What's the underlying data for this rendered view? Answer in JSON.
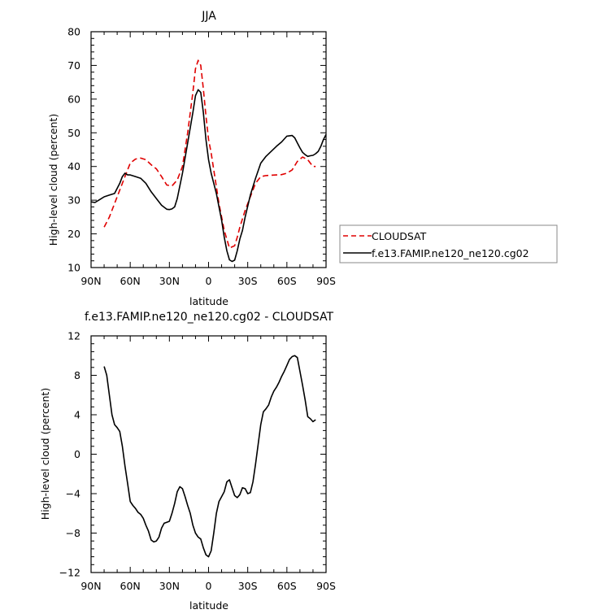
{
  "chart_data": [
    {
      "type": "line",
      "title": "JJA",
      "xlabel": "latitude",
      "ylabel": "High-level cloud (percent)",
      "xlim": [
        90,
        -90
      ],
      "ylim": [
        10,
        80
      ],
      "x_ticks": [
        90,
        60,
        30,
        0,
        -30,
        -60,
        -90
      ],
      "x_tick_labels": [
        "90N",
        "60N",
        "30N",
        "0",
        "30S",
        "60S",
        "90S"
      ],
      "y_ticks": [
        10,
        20,
        30,
        40,
        50,
        60,
        70,
        80
      ],
      "y_tick_labels": [
        "10",
        "20",
        "30",
        "40",
        "50",
        "60",
        "70",
        "80"
      ],
      "legend_position": "right",
      "series": [
        {
          "name": "CLOUDSAT",
          "color": "#e00000",
          "dash": "dashed",
          "x": [
            80,
            76,
            72,
            68,
            64,
            60,
            56,
            52,
            48,
            44,
            40,
            36,
            32,
            28,
            24,
            20,
            16,
            12,
            10,
            8,
            6,
            4,
            2,
            0,
            -2,
            -4,
            -6,
            -8,
            -12,
            -16,
            -20,
            -22,
            -24,
            -28,
            -32,
            -36,
            -40,
            -44,
            -48,
            -52,
            -56,
            -60,
            -64,
            -68,
            -72,
            -76,
            -78,
            -80,
            -82
          ],
          "y": [
            22,
            25,
            29,
            33,
            37,
            41,
            42.2,
            42.5,
            42,
            40.5,
            39.3,
            37,
            34.5,
            34.2,
            36,
            40,
            50,
            62,
            69,
            71.5,
            70,
            63,
            55,
            48,
            44,
            39,
            34,
            29,
            21,
            15.8,
            16.5,
            19,
            22,
            27,
            31,
            35,
            37,
            37.3,
            37.4,
            37.5,
            37.6,
            38,
            39,
            41.5,
            42.8,
            42,
            41,
            40,
            40
          ]
        },
        {
          "name": "f.e13.FAMIP.ne120_ne120.cg02",
          "color": "#000000",
          "dash": "solid",
          "x": [
            90,
            87,
            84,
            80,
            76,
            72,
            68,
            66,
            64,
            62,
            60,
            56,
            52,
            48,
            44,
            40,
            36,
            32,
            30,
            28,
            26,
            24,
            20,
            16,
            12,
            10,
            8,
            6,
            4,
            2,
            0,
            -2,
            -4,
            -6,
            -8,
            -10,
            -12,
            -14,
            -16,
            -18,
            -20,
            -22,
            -24,
            -26,
            -28,
            -32,
            -36,
            -40,
            -44,
            -48,
            -52,
            -56,
            -60,
            -64,
            -66,
            -68,
            -70,
            -72,
            -74,
            -76,
            -78,
            -80,
            -82,
            -84,
            -86,
            -88,
            -90
          ],
          "y": [
            29.5,
            29.3,
            30,
            31,
            31.5,
            32,
            35,
            37,
            38,
            37.5,
            37.5,
            37,
            36.5,
            35,
            32.5,
            30.5,
            28.5,
            27.3,
            27.2,
            27.4,
            28,
            30.5,
            38,
            47,
            56,
            61,
            62.8,
            62,
            56,
            48,
            42,
            38,
            35,
            32,
            28,
            24,
            19,
            15,
            12.3,
            11.8,
            12.2,
            15,
            18.5,
            21,
            25,
            31.5,
            36.5,
            41,
            43,
            44.5,
            46,
            47.3,
            49,
            49.2,
            48.5,
            47,
            45.5,
            44.2,
            43.5,
            43,
            43.2,
            43.3,
            43.8,
            44.5,
            46,
            48,
            49.5
          ]
        }
      ]
    },
    {
      "type": "line",
      "title": "f.e13.FAMIP.ne120_ne120.cg02 - CLOUDSAT",
      "xlabel": "latitude",
      "ylabel": "High-level cloud (percent)",
      "xlim": [
        90,
        -90
      ],
      "ylim": [
        -12,
        12
      ],
      "x_ticks": [
        90,
        60,
        30,
        0,
        -30,
        -60,
        -90
      ],
      "x_tick_labels": [
        "90N",
        "60N",
        "30N",
        "0",
        "30S",
        "60S",
        "90S"
      ],
      "y_ticks": [
        -12,
        -8,
        -4,
        0,
        4,
        8,
        12
      ],
      "y_tick_labels": [
        "−12",
        "−8",
        "−4",
        "0",
        "4",
        "8",
        "12"
      ],
      "series": [
        {
          "color": "#000000",
          "dash": "solid",
          "x": [
            80,
            78,
            76,
            74,
            72,
            70,
            68,
            66,
            64,
            62,
            60,
            58,
            56,
            54,
            52,
            50,
            48,
            46,
            44,
            42,
            40,
            38,
            36,
            34,
            32,
            30,
            28,
            26,
            24,
            22,
            20,
            18,
            16,
            14,
            12,
            10,
            8,
            6,
            4,
            2,
            0,
            -2,
            -4,
            -6,
            -8,
            -10,
            -12,
            -14,
            -16,
            -18,
            -20,
            -22,
            -24,
            -26,
            -28,
            -30,
            -32,
            -34,
            -36,
            -38,
            -40,
            -42,
            -44,
            -46,
            -48,
            -50,
            -52,
            -54,
            -56,
            -58,
            -60,
            -62,
            -64,
            -66,
            -68,
            -70,
            -72,
            -74,
            -76,
            -78,
            -80,
            -82
          ],
          "y": [
            8.9,
            8,
            6,
            4,
            3,
            2.7,
            2.3,
            0.8,
            -1.2,
            -3,
            -4.8,
            -5.2,
            -5.5,
            -5.9,
            -6.1,
            -6.5,
            -7.2,
            -7.8,
            -8.7,
            -8.9,
            -8.8,
            -8.4,
            -7.5,
            -7,
            -6.9,
            -6.8,
            -6,
            -5,
            -3.8,
            -3.3,
            -3.5,
            -4.3,
            -5.2,
            -6,
            -7.2,
            -8,
            -8.4,
            -8.6,
            -9.5,
            -10.2,
            -10.4,
            -9.8,
            -8,
            -6,
            -4.8,
            -4.3,
            -3.8,
            -2.8,
            -2.6,
            -3.4,
            -4.2,
            -4.4,
            -4.1,
            -3.4,
            -3.5,
            -4,
            -3.9,
            -2.8,
            -1,
            1,
            3,
            4.3,
            4.6,
            5,
            5.8,
            6.4,
            6.8,
            7.3,
            7.9,
            8.4,
            9,
            9.6,
            9.9,
            10,
            9.8,
            8.4,
            7,
            5.5,
            3.8,
            3.6,
            3.3,
            3.5
          ]
        }
      ]
    }
  ],
  "legend": {
    "entries": [
      "CLOUDSAT",
      "f.e13.FAMIP.ne120_ne120.cg02"
    ]
  }
}
